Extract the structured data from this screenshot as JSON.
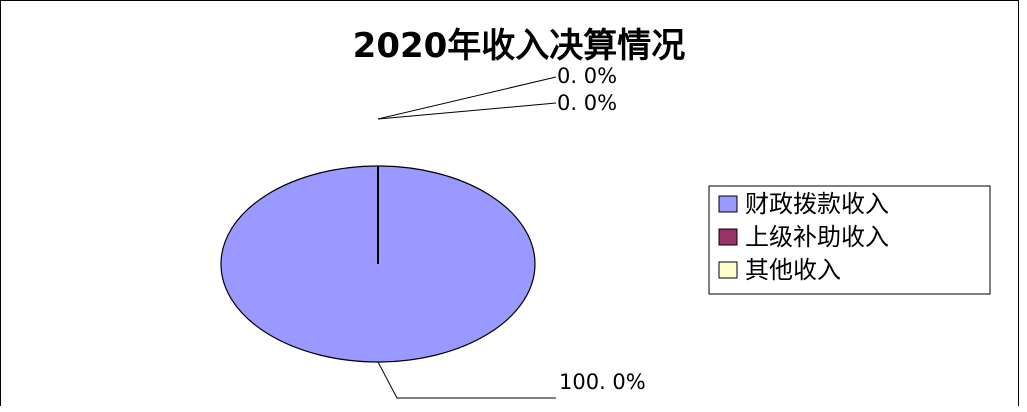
{
  "chart_data": {
    "type": "pie",
    "title": "2020年收入决算情况",
    "categories": [
      "财政拨款收入",
      "上级补助收入",
      "其他收入"
    ],
    "values": [
      100.0,
      0.0,
      0.0
    ],
    "labels": [
      "100. 0%",
      "0. 0%",
      "0. 0%"
    ],
    "colors": [
      "#9999ff",
      "#993366",
      "#ffffcc"
    ],
    "legend_position": "right"
  }
}
